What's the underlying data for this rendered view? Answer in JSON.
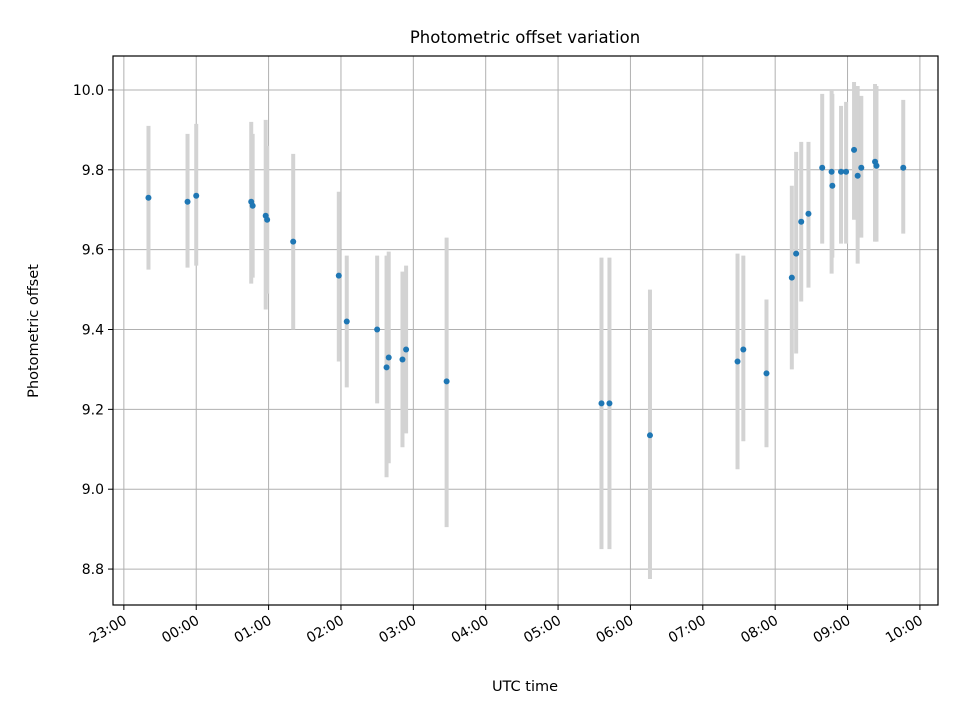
{
  "chart_data": {
    "type": "scatter",
    "title": "Photometric offset variation",
    "xlabel": "UTC time",
    "ylabel": "Photometric offset",
    "x_unit": "hours relative to 00:00 UTC",
    "xlim": [
      -1.15,
      10.25
    ],
    "ylim": [
      8.71,
      10.085
    ],
    "x_ticks": [
      {
        "value": -1,
        "label": "23:00"
      },
      {
        "value": 0,
        "label": "00:00"
      },
      {
        "value": 1,
        "label": "01:00"
      },
      {
        "value": 2,
        "label": "02:00"
      },
      {
        "value": 3,
        "label": "03:00"
      },
      {
        "value": 4,
        "label": "04:00"
      },
      {
        "value": 5,
        "label": "05:00"
      },
      {
        "value": 6,
        "label": "06:00"
      },
      {
        "value": 7,
        "label": "07:00"
      },
      {
        "value": 8,
        "label": "08:00"
      },
      {
        "value": 9,
        "label": "09:00"
      },
      {
        "value": 10,
        "label": "10:00"
      }
    ],
    "y_ticks": [
      {
        "value": 8.8,
        "label": "8.8"
      },
      {
        "value": 9.0,
        "label": "9.0"
      },
      {
        "value": 9.2,
        "label": "9.2"
      },
      {
        "value": 9.4,
        "label": "9.4"
      },
      {
        "value": 9.6,
        "label": "9.6"
      },
      {
        "value": 9.8,
        "label": "9.8"
      },
      {
        "value": 10.0,
        "label": "10.0"
      }
    ],
    "grid": true,
    "colors": {
      "points": "#1f77b4",
      "error_bars": "#d3d3d3",
      "grid": "#b0b0b0"
    },
    "series": [
      {
        "points": [
          {
            "x": -0.66,
            "y": 9.73,
            "ylow": 9.55,
            "yhigh": 9.91
          },
          {
            "x": -0.12,
            "y": 9.72,
            "ylow": 9.555,
            "yhigh": 9.89
          },
          {
            "x": 0.0,
            "y": 9.735,
            "ylow": 9.56,
            "yhigh": 9.915
          },
          {
            "x": 0.76,
            "y": 9.72,
            "ylow": 9.515,
            "yhigh": 9.92
          },
          {
            "x": 0.78,
            "y": 9.71,
            "ylow": 9.53,
            "yhigh": 9.89
          },
          {
            "x": 0.96,
            "y": 9.685,
            "ylow": 9.45,
            "yhigh": 9.925
          },
          {
            "x": 0.98,
            "y": 9.675,
            "ylow": 9.49,
            "yhigh": 9.86
          },
          {
            "x": 1.34,
            "y": 9.62,
            "ylow": 9.4,
            "yhigh": 9.84
          },
          {
            "x": 1.97,
            "y": 9.535,
            "ylow": 9.32,
            "yhigh": 9.745
          },
          {
            "x": 2.08,
            "y": 9.42,
            "ylow": 9.255,
            "yhigh": 9.585
          },
          {
            "x": 2.5,
            "y": 9.4,
            "ylow": 9.215,
            "yhigh": 9.585
          },
          {
            "x": 2.63,
            "y": 9.305,
            "ylow": 9.03,
            "yhigh": 9.585
          },
          {
            "x": 2.66,
            "y": 9.33,
            "ylow": 9.065,
            "yhigh": 9.595
          },
          {
            "x": 2.85,
            "y": 9.325,
            "ylow": 9.105,
            "yhigh": 9.545
          },
          {
            "x": 2.9,
            "y": 9.35,
            "ylow": 9.14,
            "yhigh": 9.56
          },
          {
            "x": 3.46,
            "y": 9.27,
            "ylow": 8.905,
            "yhigh": 9.63
          },
          {
            "x": 5.6,
            "y": 9.215,
            "ylow": 8.85,
            "yhigh": 9.58
          },
          {
            "x": 5.71,
            "y": 9.215,
            "ylow": 8.85,
            "yhigh": 9.58
          },
          {
            "x": 6.27,
            "y": 9.135,
            "ylow": 8.775,
            "yhigh": 9.5
          },
          {
            "x": 7.48,
            "y": 9.32,
            "ylow": 9.05,
            "yhigh": 9.59
          },
          {
            "x": 7.56,
            "y": 9.35,
            "ylow": 9.12,
            "yhigh": 9.585
          },
          {
            "x": 7.88,
            "y": 9.29,
            "ylow": 9.105,
            "yhigh": 9.475
          },
          {
            "x": 8.23,
            "y": 9.53,
            "ylow": 9.3,
            "yhigh": 9.76
          },
          {
            "x": 8.29,
            "y": 9.59,
            "ylow": 9.34,
            "yhigh": 9.845
          },
          {
            "x": 8.36,
            "y": 9.67,
            "ylow": 9.47,
            "yhigh": 9.87
          },
          {
            "x": 8.46,
            "y": 9.69,
            "ylow": 9.505,
            "yhigh": 9.87
          },
          {
            "x": 8.65,
            "y": 9.805,
            "ylow": 9.615,
            "yhigh": 9.99
          },
          {
            "x": 8.78,
            "y": 9.795,
            "ylow": 9.54,
            "yhigh": 10.0
          },
          {
            "x": 8.79,
            "y": 9.76,
            "ylow": 9.58,
            "yhigh": 9.99
          },
          {
            "x": 8.91,
            "y": 9.795,
            "ylow": 9.615,
            "yhigh": 9.96
          },
          {
            "x": 8.98,
            "y": 9.795,
            "ylow": 9.615,
            "yhigh": 9.97
          },
          {
            "x": 9.09,
            "y": 9.85,
            "ylow": 9.675,
            "yhigh": 10.02
          },
          {
            "x": 9.14,
            "y": 9.785,
            "ylow": 9.565,
            "yhigh": 10.01
          },
          {
            "x": 9.19,
            "y": 9.805,
            "ylow": 9.63,
            "yhigh": 9.985
          },
          {
            "x": 9.38,
            "y": 9.82,
            "ylow": 9.62,
            "yhigh": 10.015
          },
          {
            "x": 9.4,
            "y": 9.81,
            "ylow": 9.62,
            "yhigh": 10.01
          },
          {
            "x": 9.77,
            "y": 9.805,
            "ylow": 9.64,
            "yhigh": 9.975
          }
        ]
      }
    ]
  }
}
